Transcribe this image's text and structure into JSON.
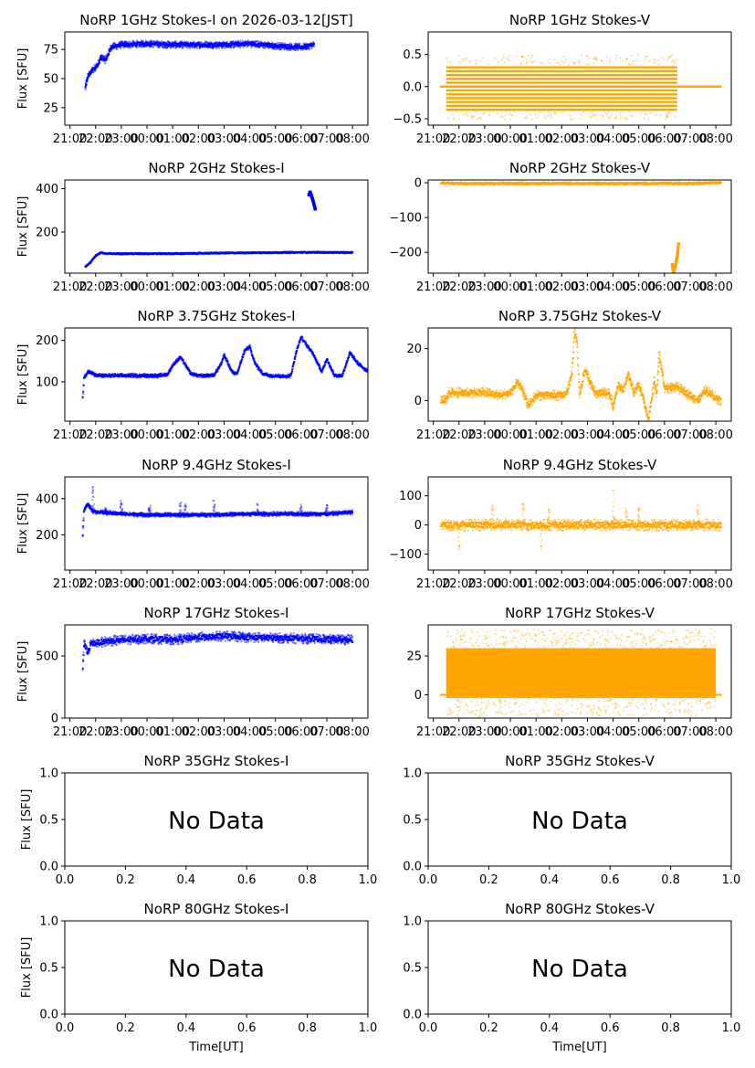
{
  "figure": {
    "time_ticks": [
      "21:00",
      "22:00",
      "23:00",
      "00:00",
      "01:00",
      "02:00",
      "03:00",
      "04:00",
      "05:00",
      "06:00",
      "07:00",
      "08:00"
    ],
    "no_data_ticks": [
      "0.0",
      "0.2",
      "0.4",
      "0.6",
      "0.8",
      "1.0"
    ],
    "no_data_label": "No Data",
    "ylabel": "Flux [SFU]",
    "xlabel": "Time[UT]",
    "colors": {
      "stokes_i": "#0000ff",
      "stokes_v": "#ffa500",
      "axis": "#000000"
    }
  },
  "chart_data": [
    {
      "type": "scatter",
      "title": "NoRP 1GHz Stokes-I on 2026-03-12[JST]",
      "ylabel": "Flux [SFU]",
      "xlabel": "",
      "series_color": "#0000ff",
      "x_unit": "hours since 21:00 UT",
      "xlim": [
        -0.2,
        11.6
      ],
      "ylim": [
        10,
        90
      ],
      "yticks": [
        25,
        50,
        75
      ],
      "ytick_labels": [
        "25",
        "50",
        "75"
      ],
      "x": [
        0.6,
        0.7,
        0.9,
        1.1,
        1.2,
        1.4,
        1.6,
        2,
        3,
        4,
        5,
        6,
        7,
        8,
        9,
        9.5
      ],
      "y": [
        42,
        52,
        58,
        62,
        68,
        66,
        77,
        79,
        80,
        79,
        79,
        79,
        80,
        78,
        77,
        79
      ],
      "noise": 1.5
    },
    {
      "type": "scatter",
      "title": "NoRP 1GHz Stokes-V",
      "ylabel": "",
      "xlabel": "",
      "series_color": "#ffa500",
      "x_unit": "hours since 21:00 UT",
      "xlim": [
        -0.2,
        11.6
      ],
      "ylim": [
        -0.6,
        0.85
      ],
      "yticks": [
        -0.5,
        0.0,
        0.5
      ],
      "ytick_labels": [
        "−0.5",
        "0.0",
        "0.5"
      ],
      "x": [
        0.3,
        0.5,
        9.5,
        11.2
      ],
      "y": [
        0,
        0,
        0,
        0
      ],
      "band": {
        "x_from": 0.5,
        "x_to": 9.5,
        "y_low": -0.36,
        "y_high": 0.34,
        "quantized_step": 0.06
      },
      "noise": 0
    },
    {
      "type": "scatter",
      "title": "NoRP 2GHz Stokes-I",
      "ylabel": "Flux [SFU]",
      "xlabel": "",
      "series_color": "#0000ff",
      "x_unit": "hours since 21:00 UT",
      "xlim": [
        -0.2,
        11.6
      ],
      "ylim": [
        10,
        440
      ],
      "yticks": [
        200,
        400
      ],
      "ytick_labels": [
        "200",
        "400"
      ],
      "x": [
        0.6,
        0.8,
        1.0,
        1.2,
        1.4,
        2,
        4,
        6,
        8,
        9.3,
        9.5,
        11.0
      ],
      "y": [
        40,
        60,
        90,
        105,
        100,
        100,
        100,
        103,
        105,
        106,
        106,
        105
      ],
      "burst": {
        "x": [
          9.3,
          9.35,
          9.45,
          9.55
        ],
        "y": [
          370,
          385,
          350,
          305
        ]
      },
      "noise": 2
    },
    {
      "type": "scatter",
      "title": "NoRP 2GHz Stokes-V",
      "ylabel": "",
      "xlabel": "",
      "series_color": "#ffa500",
      "x_unit": "hours since 21:00 UT",
      "xlim": [
        -0.2,
        11.6
      ],
      "ylim": [
        -260,
        8
      ],
      "yticks": [
        -200,
        -100,
        0
      ],
      "ytick_labels": [
        "−200",
        "−100",
        "0"
      ],
      "x": [
        0.3,
        1,
        3,
        5,
        7,
        9.3,
        9.6,
        11.2
      ],
      "y": [
        0,
        -2,
        -2,
        -2,
        -2,
        -2,
        -2,
        0
      ],
      "burst": {
        "x": [
          9.3,
          9.35,
          9.42,
          9.5,
          9.55
        ],
        "y": [
          -235,
          -260,
          -240,
          -210,
          -175
        ]
      },
      "noise": 2
    },
    {
      "type": "scatter",
      "title": "NoRP 3.75GHz Stokes-I",
      "ylabel": "Flux [SFU]",
      "xlabel": "",
      "series_color": "#0000ff",
      "x_unit": "hours since 21:00 UT",
      "xlim": [
        -0.2,
        11.6
      ],
      "ylim": [
        5,
        230
      ],
      "yticks": [
        100,
        200
      ],
      "ytick_labels": [
        "100",
        "200"
      ],
      "x": [
        0.5,
        0.55,
        0.7,
        0.9,
        1,
        2,
        3,
        3.5,
        3.8,
        4.0,
        4.3,
        4.7,
        5,
        5.3,
        5.6,
        5.9,
        6.0,
        6.3,
        6.5,
        6.8,
        7.0,
        7.2,
        7.5,
        7.8,
        8.0,
        8.3,
        8.6,
        8.8,
        9.0,
        9.2,
        9.5,
        9.6,
        9.8,
        10.0,
        10.3,
        10.6,
        10.9,
        11.2,
        11.5,
        11.8,
        12.0
      ],
      "y": [
        60,
        110,
        125,
        120,
        115,
        115,
        115,
        115,
        118,
        140,
        160,
        120,
        115,
        115,
        116,
        145,
        165,
        125,
        118,
        175,
        185,
        145,
        120,
        115,
        115,
        113,
        115,
        170,
        208,
        190,
        165,
        150,
        125,
        155,
        115,
        115,
        170,
        145,
        130,
        120,
        115
      ],
      "noise": 2.5
    },
    {
      "type": "scatter",
      "title": "NoRP 3.75GHz Stokes-V",
      "ylabel": "",
      "xlabel": "",
      "series_color": "#ffa500",
      "x_unit": "hours since 21:00 UT",
      "xlim": [
        -0.2,
        11.6
      ],
      "ylim": [
        -8,
        28
      ],
      "yticks": [
        0,
        20
      ],
      "ytick_labels": [
        "0",
        "20"
      ],
      "x": [
        0.3,
        0.5,
        0.6,
        1,
        2,
        2.6,
        3,
        3.3,
        3.5,
        3.7,
        4,
        4.5,
        5,
        5.2,
        5.4,
        5.5,
        5.6,
        5.7,
        5.9,
        6.3,
        6.7,
        6.9,
        7.0,
        7.2,
        7.4,
        7.6,
        7.8,
        8.0,
        8.2,
        8.3,
        8.4,
        8.6,
        8.7,
        8.8,
        9,
        9.5,
        10,
        10.3,
        10.6,
        11,
        11.2
      ],
      "y": [
        0,
        0,
        3,
        3,
        3,
        2,
        3,
        7,
        3,
        -2,
        2,
        2,
        2,
        3,
        10,
        27,
        22,
        2,
        12,
        3,
        3,
        2,
        -3,
        6,
        4,
        10,
        3,
        6,
        0,
        -5,
        -7,
        8,
        2,
        18,
        5,
        5,
        2,
        0,
        4,
        1,
        0
      ],
      "noise": 1
    },
    {
      "type": "scatter",
      "title": "NoRP 9.4GHz Stokes-I",
      "ylabel": "Flux [SFU]",
      "xlabel": "",
      "series_color": "#0000ff",
      "x_unit": "hours since 21:00 UT",
      "xlim": [
        -0.2,
        11.6
      ],
      "ylim": [
        5,
        520
      ],
      "yticks": [
        200,
        400
      ],
      "ytick_labels": [
        "200",
        "400"
      ],
      "x": [
        0.5,
        0.55,
        0.7,
        0.9,
        1.5,
        3,
        5,
        7,
        9,
        10,
        11.0
      ],
      "y": [
        200,
        340,
        370,
        330,
        320,
        310,
        310,
        315,
        315,
        315,
        325
      ],
      "spikes": {
        "x": [
          0.9,
          1.4,
          2.0,
          3.1,
          4.3,
          4.5,
          5.6,
          7.3,
          9.0,
          10.0
        ],
        "y": [
          470,
          350,
          390,
          370,
          380,
          375,
          405,
          380,
          370,
          365
        ]
      },
      "noise": 6
    },
    {
      "type": "scatter",
      "title": "NoRP 9.4GHz Stokes-V",
      "ylabel": "",
      "xlabel": "",
      "series_color": "#ffa500",
      "x_unit": "hours since 21:00 UT",
      "xlim": [
        -0.2,
        11.6
      ],
      "ylim": [
        -155,
        165
      ],
      "yticks": [
        -100,
        0,
        100
      ],
      "ytick_labels": [
        "−100",
        "0",
        "100"
      ],
      "x": [
        0.3,
        11.2
      ],
      "y": [
        0,
        0
      ],
      "spikes": {
        "x": [
          1.0,
          2.3,
          3.5,
          4.2,
          4.5,
          7.0,
          7.5,
          8.0,
          10.3
        ],
        "y": [
          -85,
          70,
          80,
          -90,
          70,
          125,
          60,
          60,
          70
        ]
      },
      "noise": 10
    },
    {
      "type": "scatter",
      "title": "NoRP 17GHz Stokes-I",
      "ylabel": "Flux [SFU]",
      "xlabel": "",
      "series_color": "#0000ff",
      "x_unit": "hours since 21:00 UT",
      "xlim": [
        -0.2,
        11.6
      ],
      "ylim": [
        0,
        750
      ],
      "yticks": [
        0,
        500
      ],
      "ytick_labels": [
        "0",
        "500"
      ],
      "x": [
        0.5,
        0.55,
        0.7,
        0.8,
        1.5,
        3,
        4,
        5,
        6,
        7,
        8,
        9,
        10,
        11.0
      ],
      "y": [
        400,
        600,
        520,
        600,
        620,
        640,
        630,
        650,
        660,
        650,
        645,
        640,
        635,
        630
      ],
      "noise": 20
    },
    {
      "type": "scatter",
      "title": "NoRP 17GHz Stokes-V",
      "ylabel": "",
      "xlabel": "",
      "series_color": "#ffa500",
      "x_unit": "hours since 21:00 UT",
      "xlim": [
        -0.2,
        11.6
      ],
      "ylim": [
        -15,
        45
      ],
      "yticks": [
        0,
        25
      ],
      "ytick_labels": [
        "0",
        "25"
      ],
      "x": [
        0.3,
        0.5,
        11.0,
        11.2
      ],
      "y": [
        0,
        0,
        0,
        0
      ],
      "band": {
        "x_from": 0.5,
        "x_to": 11.0,
        "y_low": -2,
        "y_high": 30,
        "quantized_step": 0
      },
      "noise": 0
    },
    {
      "type": "scatter",
      "title": "NoRP 35GHz Stokes-I",
      "ylabel": "Flux [SFU]",
      "xlabel": "",
      "xlim": [
        0,
        1
      ],
      "ylim": [
        0,
        1
      ],
      "yticks": [
        0,
        0.5,
        1
      ],
      "ytick_labels": [
        "0.0",
        "0.5",
        "1.0"
      ],
      "x": [],
      "y": [],
      "annotation": "No Data"
    },
    {
      "type": "scatter",
      "title": "NoRP 35GHz Stokes-V",
      "ylabel": "",
      "xlabel": "",
      "xlim": [
        0,
        1
      ],
      "ylim": [
        0,
        1
      ],
      "yticks": [
        0,
        0.5,
        1
      ],
      "ytick_labels": [
        "0.0",
        "0.5",
        "1.0"
      ],
      "x": [],
      "y": [],
      "annotation": "No Data"
    },
    {
      "type": "scatter",
      "title": "NoRP 80GHz Stokes-I",
      "ylabel": "Flux [SFU]",
      "xlabel": "Time[UT]",
      "xlim": [
        0,
        1
      ],
      "ylim": [
        0,
        1
      ],
      "yticks": [
        0,
        0.5,
        1
      ],
      "ytick_labels": [
        "0.0",
        "0.5",
        "1.0"
      ],
      "x": [],
      "y": [],
      "annotation": "No Data"
    },
    {
      "type": "scatter",
      "title": "NoRP 80GHz Stokes-V",
      "ylabel": "",
      "xlabel": "Time[UT]",
      "xlim": [
        0,
        1
      ],
      "ylim": [
        0,
        1
      ],
      "yticks": [
        0,
        0.5,
        1
      ],
      "ytick_labels": [
        "0.0",
        "0.5",
        "1.0"
      ],
      "x": [],
      "y": [],
      "annotation": "No Data"
    }
  ]
}
